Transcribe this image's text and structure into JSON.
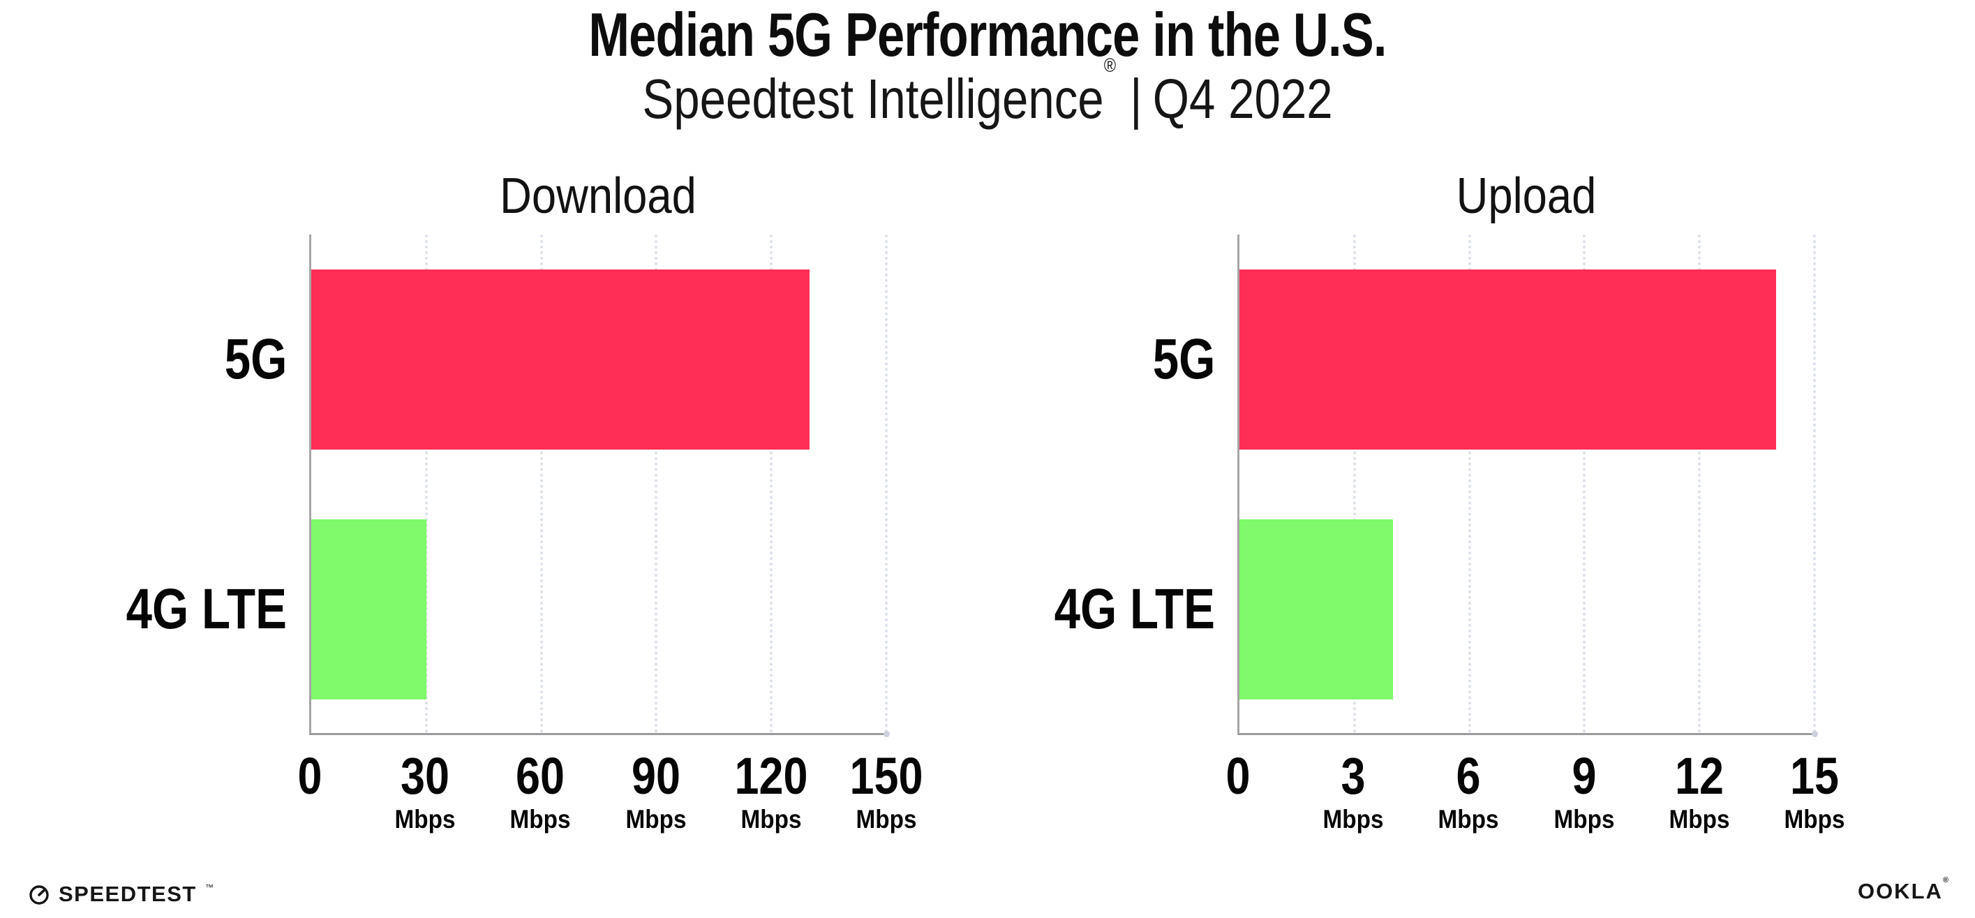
{
  "header": {
    "title": "Median 5G Performance in the U.S.",
    "subtitle_brand": "Speedtest Intelligence",
    "subtitle_reg": "®",
    "subtitle_sep": "|",
    "subtitle_period": "Q4 2022"
  },
  "chart_data": {
    "type": "bar",
    "orientation": "horizontal",
    "categories": [
      "5G",
      "4G LTE"
    ],
    "unit": "Mbps",
    "grid": "dotted vertical gridlines at each tick",
    "legend": "none",
    "series_colors": {
      "5G": "#ff2e56",
      "4G LTE": "#7efa6a"
    },
    "charts": [
      {
        "title": "Download",
        "xlabel_unit": "Mbps",
        "xlim": [
          0,
          150
        ],
        "ticks": [
          0,
          30,
          60,
          90,
          120,
          150
        ],
        "values": [
          130,
          30
        ]
      },
      {
        "title": "Upload",
        "xlabel_unit": "Mbps",
        "xlim": [
          0,
          15
        ],
        "ticks": [
          0,
          3,
          6,
          9,
          12,
          15
        ],
        "values": [
          14,
          4
        ]
      }
    ]
  },
  "footer": {
    "speedtest_label": "SPEEDTEST",
    "speedtest_tm": "™",
    "ookla_label": "OOKLA",
    "ookla_reg": "®"
  },
  "colors": {
    "background": "#ffffff",
    "bar_5g": "#ff2e56",
    "bar_4g_lte": "#7efa6a",
    "axis_line": "#9b9b9b",
    "gridline": "#dce0ea",
    "text": "#0d0d0d"
  }
}
